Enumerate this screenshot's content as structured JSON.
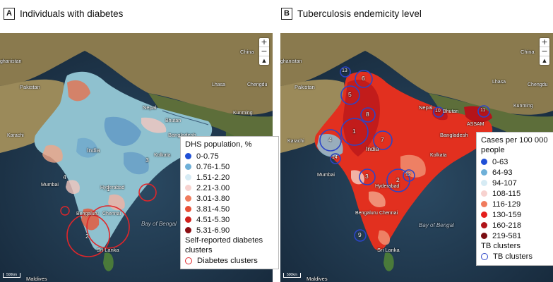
{
  "panel_a": {
    "letter": "A",
    "title": "Individuals with diabetes",
    "legend_title": "DHS population, %",
    "legend_items": [
      {
        "label": "0-0.75",
        "color": "#1f4fd6"
      },
      {
        "label": "0.76-1.50",
        "color": "#6fb0d8"
      },
      {
        "label": "1.51-2.20",
        "color": "#d6ebf4"
      },
      {
        "label": "2.21-3.00",
        "color": "#f7d2cf"
      },
      {
        "label": "3.01-3.80",
        "color": "#f07b5d"
      },
      {
        "label": "3.81-4.50",
        "color": "#e84f36"
      },
      {
        "label": "4.51-5.30",
        "color": "#d0201c"
      },
      {
        "label": "5.31-6.90",
        "color": "#8b0d12"
      }
    ],
    "clusters_title": "Self-reported diabetes clusters",
    "clusters_label": "Diabetes clusters",
    "cluster_color": "#e0262a",
    "clusters": [
      "1",
      "2",
      "3",
      "4"
    ],
    "places": {
      "china": "China",
      "afghanistan": "ghanistan",
      "pakistan": "Pakistan",
      "nepal": "Nepal",
      "india": "India",
      "bangladesh": "Bangladesh",
      "bay_of_bengal": "Bay of Bengal",
      "sri_lanka": "Sri Lanka",
      "maldives": "Maldives",
      "bengaluru": "Bengaluru",
      "chennai": "Chennai",
      "mumbai": "Mumbai",
      "kolkata": "Kolkata",
      "bhutan": "Bhutan",
      "hyderabad": "Hyderabad",
      "chengdu": "Chengdu",
      "lhasa": "Lhasa",
      "kunming": "Kunming",
      "karachi": "Karachi"
    },
    "scale": "500km"
  },
  "panel_b": {
    "letter": "B",
    "title": "Tuberculosis endemicity level",
    "legend_title": "Cases per 100 000 people",
    "legend_items": [
      {
        "label": "0-63",
        "color": "#1f4fd6"
      },
      {
        "label": "64-93",
        "color": "#6fb0d8"
      },
      {
        "label": "94-107",
        "color": "#d6ebf4"
      },
      {
        "label": "108-115",
        "color": "#f7d2cf"
      },
      {
        "label": "116-129",
        "color": "#f07b5d"
      },
      {
        "label": "130-159",
        "color": "#e41e1c"
      },
      {
        "label": "160-218",
        "color": "#b01419"
      },
      {
        "label": "219-581",
        "color": "#7a0d12"
      }
    ],
    "clusters_title": "TB clusters",
    "clusters_label": "TB clusters",
    "cluster_color": "#2b44c8",
    "clusters": [
      "1",
      "2",
      "3",
      "4",
      "5",
      "6",
      "7",
      "8",
      "9",
      "10",
      "11",
      "12",
      "13",
      "14"
    ],
    "places": {
      "china": "China",
      "afghanistan": "ghanistan",
      "pakistan": "Pakistan",
      "nepal": "Nepal",
      "india": "India",
      "bangladesh": "Bangladesh",
      "bay_of_bengal": "Bay of Bengal",
      "sri_lanka": "Sri Lanka",
      "maldives": "Maldives",
      "bengaluru": "Bengaluru",
      "chennai": "Chennai",
      "mumbai": "Mumbai",
      "kolkata": "Kolkata",
      "bhutan": "Bhutan",
      "hyderabad": "Hyderabad",
      "chengdu": "Chengdu",
      "lhasa": "Lhasa",
      "kunming": "Kunming",
      "karachi": "Karachi",
      "assam": "ASSAM"
    },
    "scale": "500km"
  },
  "map_controls": {
    "zoom_in": "+",
    "zoom_out": "−",
    "compass": "▲"
  }
}
